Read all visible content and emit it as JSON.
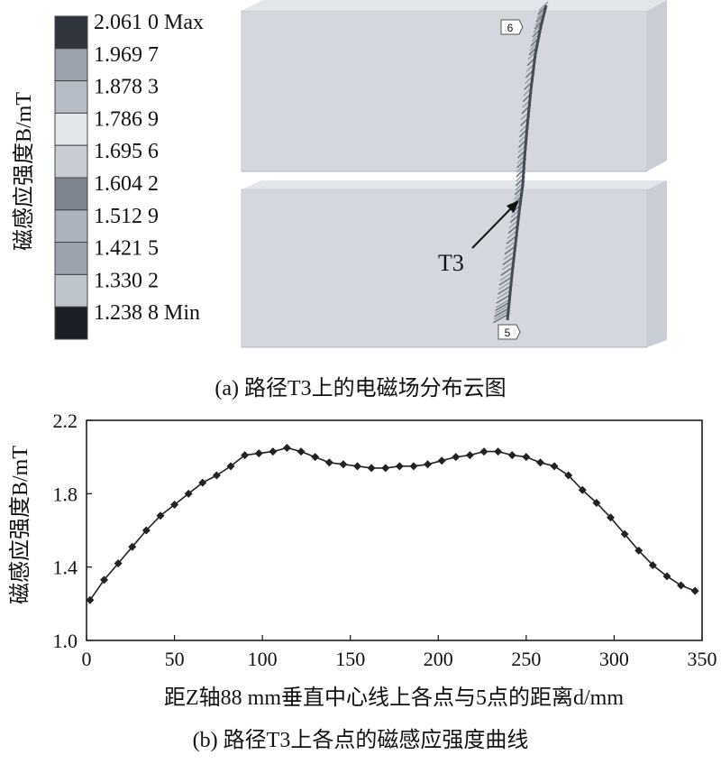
{
  "top": {
    "caption": "(a) 路径T3上的电磁场分布云图",
    "ylabel": "磁感应强度B/mT",
    "legend": {
      "labels": [
        "2.061 0 Max",
        "1.969 7",
        "1.878 3",
        "1.786 9",
        "1.695 6",
        "1.604 2",
        "1.512 9",
        "1.421 5",
        "1.330 2",
        "1.238 8 Min"
      ],
      "colors": [
        "#30343c",
        "#9aa3ad",
        "#b6bdc6",
        "#e3e6ea",
        "#c8cdd3",
        "#7d858f",
        "#aab2bb",
        "#9aa3ad",
        "#bfc5cc",
        "#1c1f25"
      ]
    },
    "annotation": "T3",
    "node_start": "6",
    "node_end": "5"
  },
  "chart_data": {
    "type": "line",
    "caption": "(b) 路径T3上各点的磁感应强度曲线",
    "xlabel": "距Z轴88 mm垂直中心线上各点与5点的距离d/mm",
    "ylabel": "磁感应强度B/mT",
    "xlim": [
      0,
      350
    ],
    "ylim": [
      1.0,
      2.2
    ],
    "xticks": [
      0,
      50,
      100,
      150,
      200,
      250,
      300,
      350
    ],
    "yticks": [
      1.0,
      1.4,
      1.8,
      2.2
    ],
    "xtick_labels": [
      "0",
      "50",
      "100",
      "150",
      "200",
      "250",
      "300",
      "350"
    ],
    "ytick_labels": [
      "1.0",
      "1.4",
      "1.8",
      "2.2"
    ],
    "grid": false,
    "series": [
      {
        "marker": "diamond",
        "color": "#222222",
        "x": [
          2,
          10,
          18,
          26,
          34,
          42,
          50,
          58,
          66,
          74,
          82,
          90,
          98,
          106,
          114,
          122,
          130,
          138,
          146,
          154,
          162,
          170,
          178,
          186,
          194,
          202,
          210,
          218,
          226,
          234,
          242,
          250,
          258,
          266,
          274,
          282,
          290,
          298,
          306,
          314,
          322,
          330,
          338,
          346
        ],
        "y": [
          1.22,
          1.33,
          1.42,
          1.51,
          1.6,
          1.68,
          1.74,
          1.8,
          1.86,
          1.9,
          1.95,
          2.01,
          2.02,
          2.03,
          2.05,
          2.03,
          2.0,
          1.97,
          1.96,
          1.95,
          1.94,
          1.94,
          1.95,
          1.95,
          1.96,
          1.98,
          2.0,
          2.01,
          2.03,
          2.03,
          2.01,
          2.0,
          1.97,
          1.95,
          1.9,
          1.82,
          1.75,
          1.67,
          1.58,
          1.49,
          1.41,
          1.35,
          1.3,
          1.27
        ]
      }
    ]
  }
}
